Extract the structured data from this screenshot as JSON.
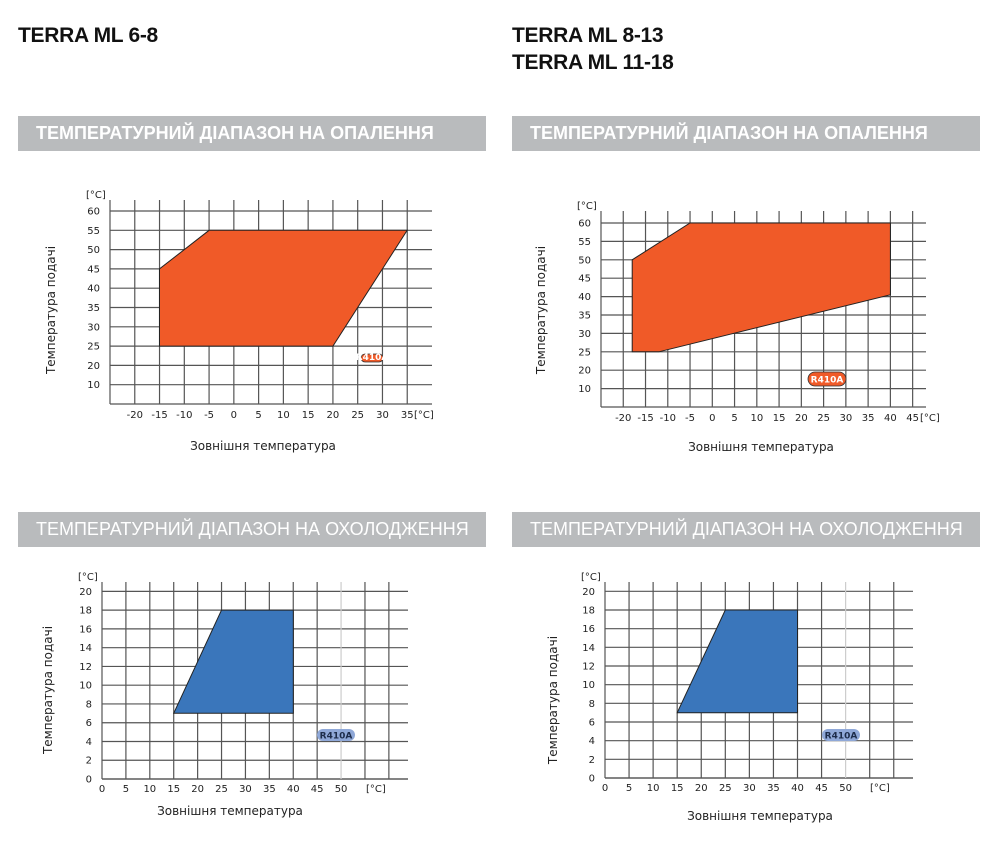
{
  "left": {
    "model": "TERRA ML 6-8",
    "heating_title": "ТЕМПЕРАТУРНИЙ ДІАПАЗОН НА ОПАЛЕННЯ",
    "cooling_title": "ТЕМПЕРАТУРНИЙ ДІАПАЗОН НА ОХОЛОДЖЕННЯ"
  },
  "right": {
    "model_1": "TERRA ML 8-13",
    "model_2": "TERRA ML 11-18",
    "heating_title": "ТЕМПЕРАТУРНИЙ ДІАПАЗОН НА ОПАЛЕННЯ",
    "cooling_title": "ТЕМПЕРАТУРНИЙ ДІАПАЗОН НА ОХОЛОДЖЕННЯ"
  },
  "colors": {
    "heating": "#f05a28",
    "cooling": "#3a76bb",
    "header_bar": "#b9bbbd",
    "cooling_badge": "#8fa8d8"
  },
  "chart_data": [
    {
      "type": "area",
      "title": "ТЕМПЕРАТУРНИЙ ДІАПАЗОН НА ОПАЛЕННЯ",
      "xlabel": "Зовнішня температура",
      "ylabel": "Температура подачі",
      "x_unit": "[°C]",
      "y_unit": "[°C]",
      "x_ticks": [
        "-20",
        "-15",
        "-10",
        "-5",
        "0",
        "5",
        "10",
        "15",
        "20",
        "25",
        "30",
        "35"
      ],
      "y_ticks": [
        "60",
        "55",
        "50",
        "45",
        "40",
        "35",
        "30",
        "25",
        "20",
        "10"
      ],
      "xlim": [
        -25,
        40
      ],
      "grid": true,
      "refrigerant": "R410A",
      "polygon": [
        [
          -15,
          25
        ],
        [
          -15,
          45
        ],
        [
          -5,
          55
        ],
        [
          35,
          55
        ],
        [
          20,
          25
        ]
      ]
    },
    {
      "type": "area",
      "title": "ТЕМПЕРАТУРНИЙ ДІАПАЗОН НА ОПАЛЕННЯ",
      "xlabel": "Зовнішня температура",
      "ylabel": "Температура подачі",
      "x_unit": "[°C]",
      "y_unit": "[°C]",
      "x_ticks": [
        "-20",
        "-15",
        "-10",
        "-5",
        "0",
        "5",
        "10",
        "15",
        "20",
        "25",
        "30",
        "35",
        "40",
        "45"
      ],
      "y_ticks": [
        "60",
        "55",
        "50",
        "45",
        "40",
        "35",
        "30",
        "25",
        "20",
        "10"
      ],
      "xlim": [
        -25,
        48
      ],
      "grid": true,
      "refrigerant": "R410A",
      "polygon": [
        [
          -18,
          25
        ],
        [
          -18,
          50
        ],
        [
          -5,
          60
        ],
        [
          40,
          60
        ],
        [
          40,
          40.5
        ],
        [
          -12,
          25
        ]
      ]
    },
    {
      "type": "area",
      "title": "ТЕМПЕРАТУРНИЙ ДІАПАЗОН НА ОХОЛОДЖЕННЯ",
      "xlabel": "Зовнішня температура",
      "ylabel": "Температура подачі",
      "x_unit": "[°C]",
      "y_unit": "[°C]",
      "x_ticks": [
        "0",
        "5",
        "10",
        "15",
        "20",
        "25",
        "30",
        "35",
        "40",
        "45",
        "50"
      ],
      "y_ticks": [
        "20",
        "18",
        "16",
        "14",
        "12",
        "10",
        "8",
        "6",
        "4",
        "2",
        "0"
      ],
      "xlim": [
        0,
        64
      ],
      "ylim": [
        0,
        21
      ],
      "grid": true,
      "refrigerant": "R410A",
      "polygon": [
        [
          15,
          7
        ],
        [
          25,
          18
        ],
        [
          40,
          18
        ],
        [
          40,
          7
        ]
      ]
    },
    {
      "type": "area",
      "title": "ТЕМПЕРАТУРНИЙ ДІАПАЗОН НА ОХОЛОДЖЕННЯ",
      "xlabel": "Зовнішня температура",
      "ylabel": "Температура подачі",
      "x_unit": "[°C]",
      "y_unit": "[°C]",
      "x_ticks": [
        "0",
        "5",
        "10",
        "15",
        "20",
        "25",
        "30",
        "35",
        "40",
        "45",
        "50"
      ],
      "y_ticks": [
        "20",
        "18",
        "16",
        "14",
        "12",
        "10",
        "8",
        "6",
        "4",
        "2",
        "0"
      ],
      "xlim": [
        0,
        64
      ],
      "ylim": [
        0,
        21
      ],
      "grid": true,
      "refrigerant": "R410A",
      "polygon": [
        [
          15,
          7
        ],
        [
          25,
          18
        ],
        [
          40,
          18
        ],
        [
          40,
          7
        ]
      ]
    }
  ]
}
